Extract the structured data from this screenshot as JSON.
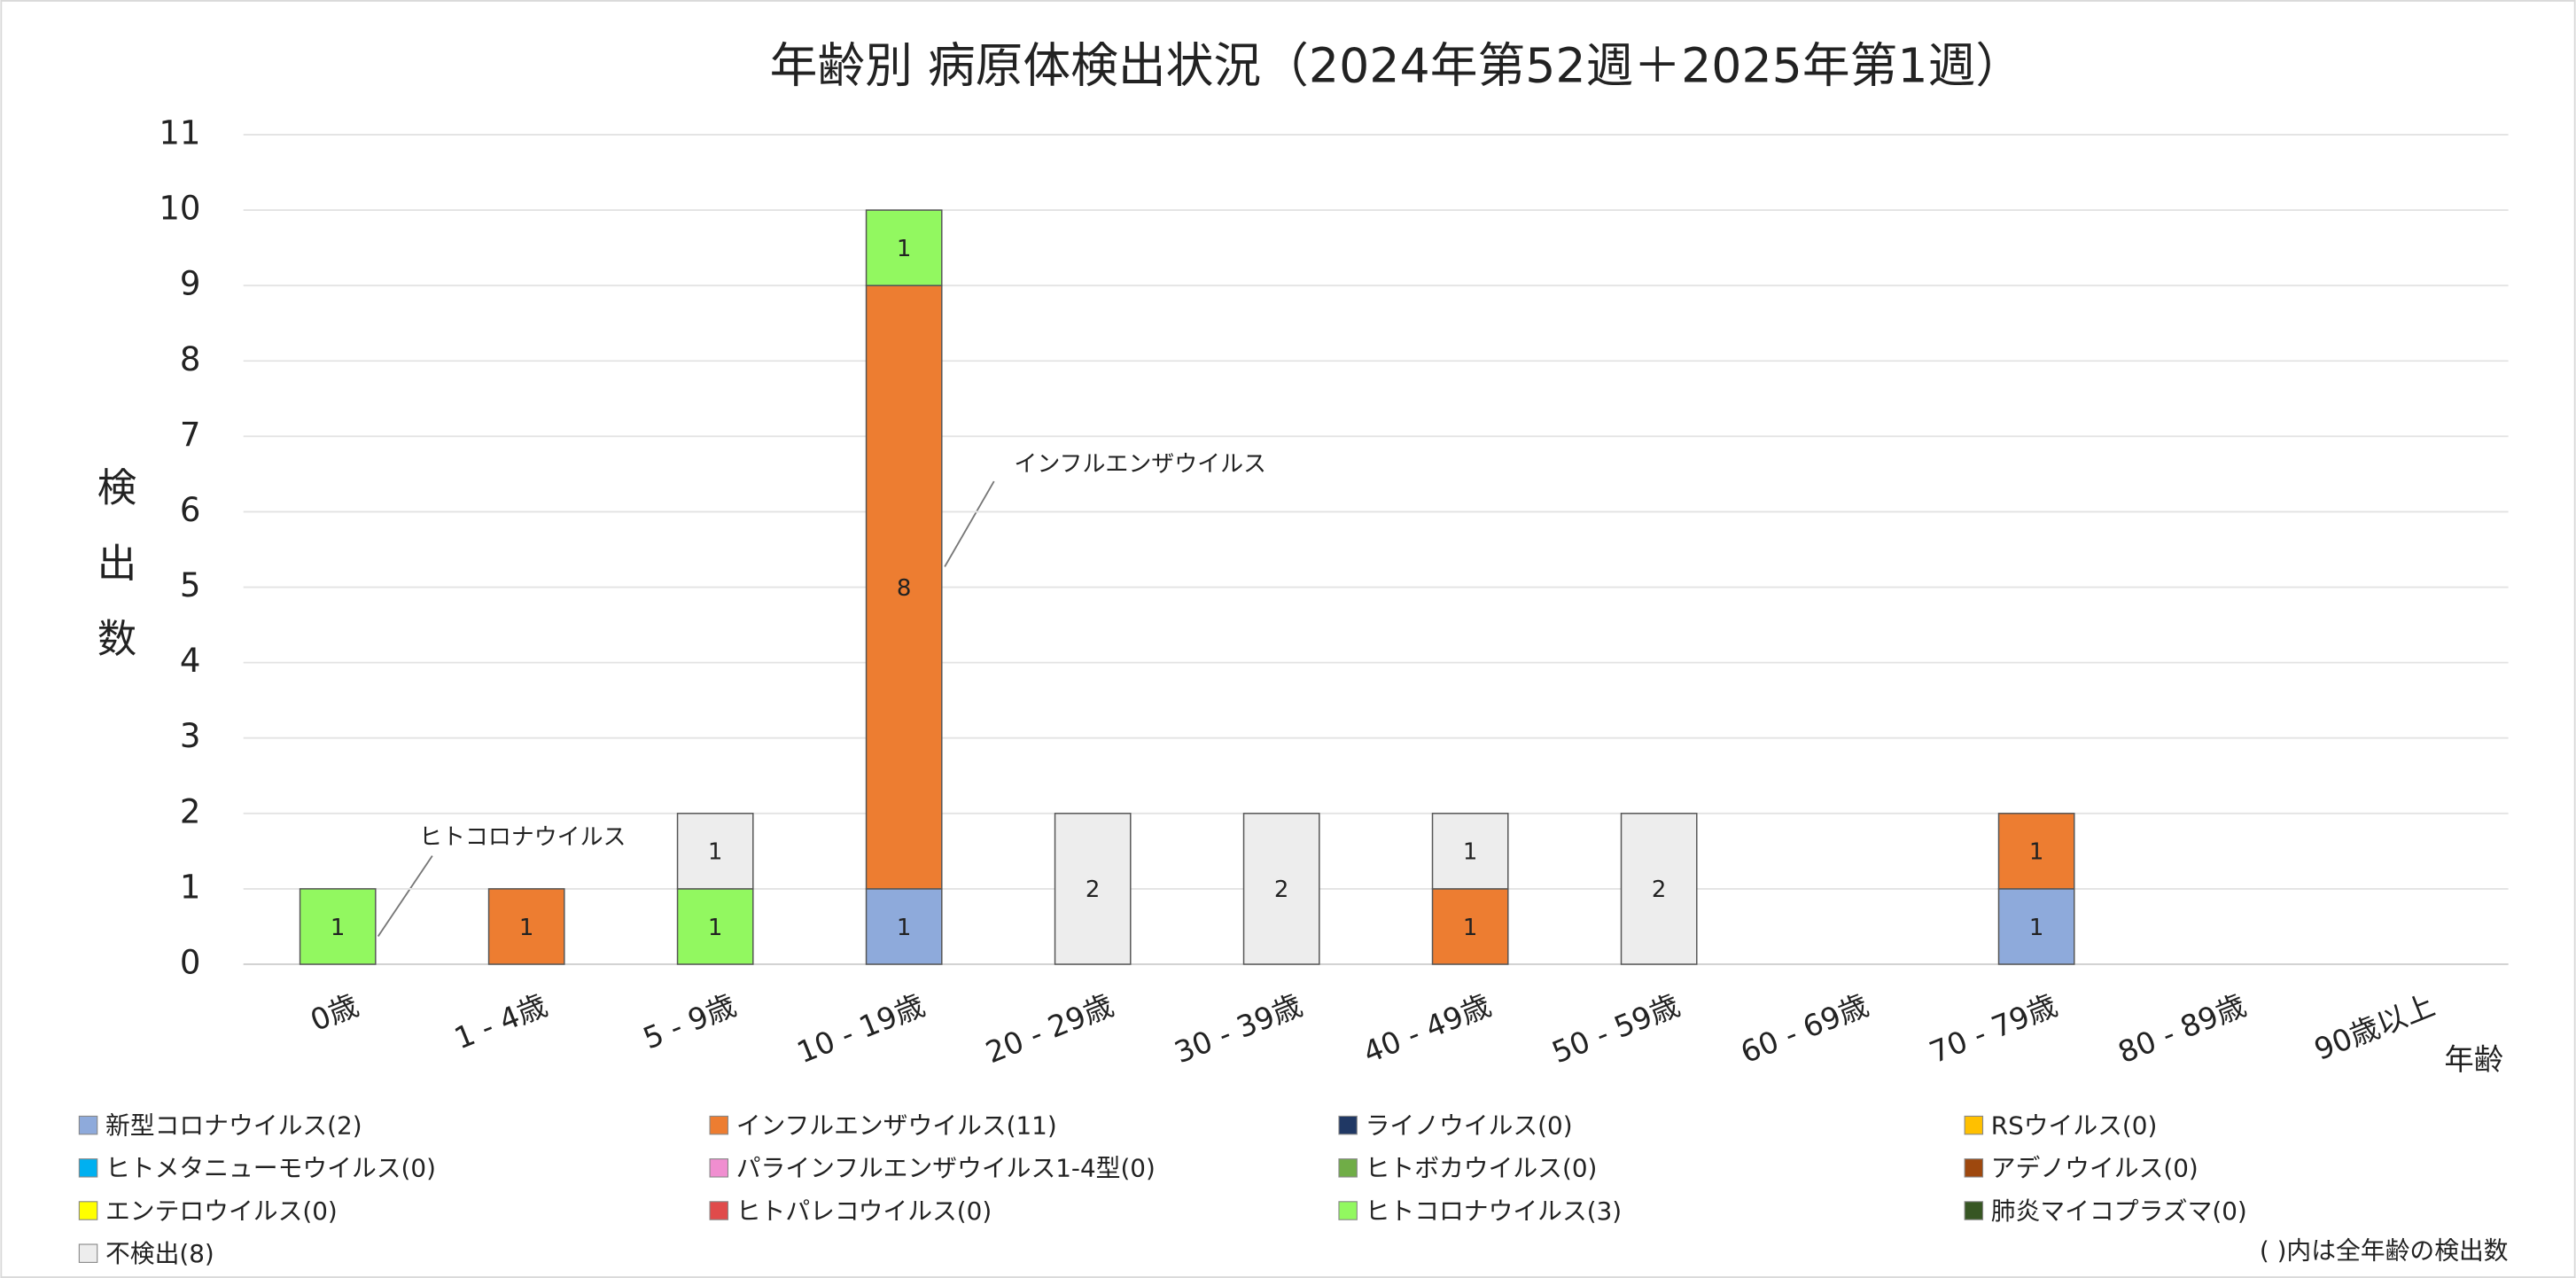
{
  "chart_data": {
    "type": "bar",
    "stacked": true,
    "title": "年齢別 病原体検出状況（2024年第52週＋2025年第1週）",
    "y_label": "検出数",
    "x_label": "年齢",
    "note": "( )内は全年齢の検出数",
    "annotations": [
      "インフルエンザウイルス",
      "ヒトコロナウイルス"
    ],
    "categories": [
      "0歳",
      "1 - 4歳",
      "5 - 9歳",
      "10 - 19歳",
      "20 - 29歳",
      "30 - 39歳",
      "40 - 49歳",
      "50 - 59歳",
      "60 - 69歳",
      "70 - 79歳",
      "80 - 89歳",
      "90歳以上"
    ],
    "ylim": [
      0,
      11
    ],
    "yticks": [
      0,
      1,
      2,
      3,
      4,
      5,
      6,
      7,
      8,
      9,
      10,
      11
    ],
    "grid": true,
    "series": [
      {
        "name": "新型コロナウイルス(2)",
        "color": "#8eaadb",
        "values": [
          null,
          null,
          null,
          1,
          null,
          null,
          null,
          null,
          null,
          1,
          null,
          null
        ]
      },
      {
        "name": "インフルエンザウイルス(11)",
        "color": "#ed7d31",
        "values": [
          null,
          1,
          null,
          8,
          null,
          null,
          1,
          null,
          null,
          1,
          null,
          null
        ]
      },
      {
        "name": "ライノウイルス(0)",
        "color": "#203864",
        "values": [
          null,
          null,
          null,
          null,
          null,
          null,
          null,
          null,
          null,
          null,
          null,
          null
        ]
      },
      {
        "name": "RSウイルス(0)",
        "color": "#ffc000",
        "values": [
          null,
          null,
          null,
          null,
          null,
          null,
          null,
          null,
          null,
          null,
          null,
          null
        ]
      },
      {
        "name": "ヒトメタニューモウイルス(0)",
        "color": "#00b0f0",
        "values": [
          null,
          null,
          null,
          null,
          null,
          null,
          null,
          null,
          null,
          null,
          null,
          null
        ]
      },
      {
        "name": "パラインフルエンザウイルス1-4型(0)",
        "color": "#f08ed0",
        "values": [
          null,
          null,
          null,
          null,
          null,
          null,
          null,
          null,
          null,
          null,
          null,
          null
        ]
      },
      {
        "name": "ヒトボカウイルス(0)",
        "color": "#70ad47",
        "values": [
          null,
          null,
          null,
          null,
          null,
          null,
          null,
          null,
          null,
          null,
          null,
          null
        ]
      },
      {
        "name": "アデノウイルス(0)",
        "color": "#9e480e",
        "values": [
          null,
          null,
          null,
          null,
          null,
          null,
          null,
          null,
          null,
          null,
          null,
          null
        ]
      },
      {
        "name": "エンテロウイルス(0)",
        "color": "#ffff00",
        "values": [
          null,
          null,
          null,
          null,
          null,
          null,
          null,
          null,
          null,
          null,
          null,
          null
        ]
      },
      {
        "name": "ヒトパレコウイルス(0)",
        "color": "#e04b4b",
        "values": [
          null,
          null,
          null,
          null,
          null,
          null,
          null,
          null,
          null,
          null,
          null,
          null
        ]
      },
      {
        "name": "ヒトコロナウイルス(3)",
        "color": "#92f860",
        "values": [
          1,
          null,
          1,
          1,
          null,
          null,
          null,
          null,
          null,
          null,
          null,
          null
        ]
      },
      {
        "name": "肺炎マイコプラズマ(0)",
        "color": "#375623",
        "values": [
          null,
          null,
          null,
          null,
          null,
          null,
          null,
          null,
          null,
          null,
          null,
          null
        ]
      },
      {
        "name": "不検出(8)",
        "color": "#ededed",
        "values": [
          null,
          null,
          1,
          null,
          2,
          2,
          1,
          2,
          null,
          null,
          null,
          null
        ]
      }
    ]
  }
}
